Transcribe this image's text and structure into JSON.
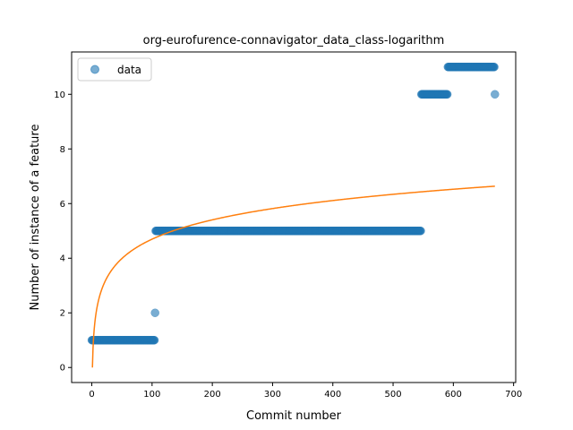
{
  "chart_data": {
    "type": "scatter",
    "title": "org-eurofurence-connavigator_data_class-logarithm",
    "xlabel": "Commit number",
    "ylabel": "Number of instance of a feature",
    "xlim": [
      -33.5,
      703.5
    ],
    "ylim": [
      -0.55,
      11.55
    ],
    "xticks": [
      0,
      100,
      200,
      300,
      400,
      500,
      600,
      700
    ],
    "yticks": [
      0,
      2,
      4,
      6,
      8,
      10
    ],
    "grid": false,
    "legend": {
      "placement": "upper-left",
      "entries": [
        "data"
      ]
    },
    "series": [
      {
        "name": "data",
        "kind": "scatter",
        "color": "#1f77b4",
        "alpha": 0.6,
        "segments": [
          {
            "x_start": 0,
            "x_end": 104,
            "y": 1
          },
          {
            "x_start": 105,
            "x_end": 105,
            "y": 2
          },
          {
            "x_start": 106,
            "x_end": 546,
            "y": 5
          },
          {
            "x_start": 547,
            "x_end": 590,
            "y": 10
          },
          {
            "x_start": 591,
            "x_end": 668,
            "y": 11
          },
          {
            "x_start": 669,
            "x_end": 669,
            "y": 10
          }
        ]
      },
      {
        "kind": "line",
        "color": "#ff7f0e",
        "fit": "logarithmic",
        "x_range": [
          1,
          669
        ],
        "coefficients": {
          "a": 1.02,
          "b": 0.0
        }
      }
    ]
  }
}
